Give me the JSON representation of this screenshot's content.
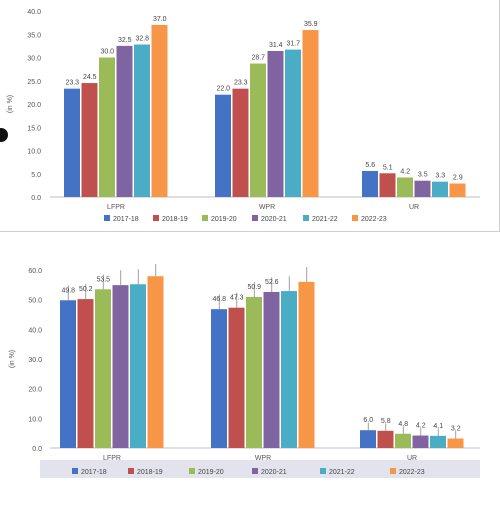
{
  "chart_data": [
    {
      "type": "bar",
      "ylabel": "(in %)",
      "ylim": [
        0,
        40
      ],
      "yticks": [
        "0.0",
        "5.0",
        "10.0",
        "15.0",
        "20.0",
        "25.0",
        "30.0",
        "35.0",
        "40.0"
      ],
      "categories": [
        "LFPR",
        "WPR",
        "UR"
      ],
      "series": [
        {
          "name": "2017-18",
          "color": "#4472c4",
          "values": [
            23.3,
            22.0,
            5.6
          ],
          "labels": [
            "23.3",
            "22.0",
            "5.6"
          ]
        },
        {
          "name": "2018-19",
          "color": "#c0504d",
          "values": [
            24.5,
            23.3,
            5.1
          ],
          "labels": [
            "24.5",
            "23.3",
            "5.1"
          ]
        },
        {
          "name": "2019-20",
          "color": "#9bbb59",
          "values": [
            30.0,
            28.7,
            4.2
          ],
          "labels": [
            "30.0",
            "28.7",
            "4.2"
          ]
        },
        {
          "name": "2020-21",
          "color": "#8064a2",
          "values": [
            32.5,
            31.4,
            3.5
          ],
          "labels": [
            "32.5",
            "31.4",
            "3.5"
          ]
        },
        {
          "name": "2021-22",
          "color": "#4bacc6",
          "values": [
            32.8,
            31.7,
            3.3
          ],
          "labels": [
            "32.8",
            "31.7",
            "3.3"
          ]
        },
        {
          "name": "2022-23",
          "color": "#f79646",
          "values": [
            37.0,
            35.9,
            2.9
          ],
          "labels": [
            "37.0",
            "35.9",
            "2.9"
          ]
        }
      ],
      "legend": "bottom",
      "grid": false
    },
    {
      "type": "bar",
      "ylabel": "(in %)",
      "ylim": [
        0,
        60
      ],
      "yticks": [
        "0.0",
        "10.0",
        "20.0",
        "30.0",
        "40.0",
        "50.0",
        "60.0"
      ],
      "categories": [
        "LFPR",
        "WPR",
        "UR"
      ],
      "series": [
        {
          "name": "2017-18",
          "color": "#4472c4",
          "values": [
            49.8,
            46.8,
            6.0
          ],
          "labels": [
            "49.8",
            "46.8",
            "6.0"
          ]
        },
        {
          "name": "2018-19",
          "color": "#c0504d",
          "values": [
            50.2,
            47.3,
            5.8
          ],
          "labels": [
            "50.2",
            "47.3",
            "5.8"
          ]
        },
        {
          "name": "2019-20",
          "color": "#9bbb59",
          "values": [
            53.5,
            50.9,
            4.8
          ],
          "labels": [
            "53.5",
            "50.9",
            "4.8"
          ]
        },
        {
          "name": "2020-21",
          "color": "#8064a2",
          "values": [
            54.9,
            52.6,
            4.2
          ],
          "labels": [
            "",
            "52.6",
            "4.2"
          ]
        },
        {
          "name": "2021-22",
          "color": "#4bacc6",
          "values": [
            55.2,
            52.9,
            4.1
          ],
          "labels": [
            "",
            "",
            "4.1"
          ]
        },
        {
          "name": "2022-23",
          "color": "#f79646",
          "values": [
            57.9,
            56.0,
            3.2
          ],
          "labels": [
            "",
            "",
            "3.2"
          ]
        }
      ],
      "legend": "bottom",
      "grid": false,
      "error_bars": true
    }
  ]
}
